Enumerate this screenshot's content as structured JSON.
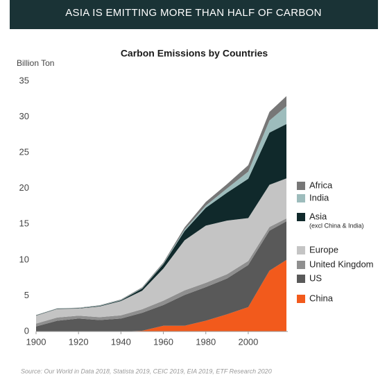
{
  "header": {
    "title": "ASIA IS EMITTING MORE THAN HALF OF CARBON"
  },
  "chart_data": {
    "type": "stacked-area",
    "title": "Carbon Emissions by Countries",
    "y_label": "Billion Ton",
    "x": [
      1900,
      1910,
      1920,
      1930,
      1940,
      1950,
      1960,
      1970,
      1980,
      1990,
      2000,
      2010,
      2018
    ],
    "series": [
      {
        "name": "China",
        "color": "#f25a1c",
        "values": [
          0,
          0,
          0,
          0,
          0,
          0.1,
          0.8,
          0.8,
          1.5,
          2.4,
          3.4,
          8.5,
          10
        ]
      },
      {
        "name": "US",
        "color": "#595959",
        "values": [
          0.7,
          1.5,
          1.8,
          1.6,
          1.8,
          2.5,
          2.9,
          4.3,
          4.7,
          5.0,
          5.9,
          5.6,
          5.4
        ]
      },
      {
        "name": "United Kingdom",
        "color": "#8f8f8f",
        "values": [
          0.4,
          0.45,
          0.4,
          0.4,
          0.45,
          0.5,
          0.6,
          0.65,
          0.6,
          0.6,
          0.55,
          0.5,
          0.4
        ]
      },
      {
        "name": "Europe",
        "color": "#c4c4c4",
        "values": [
          1.1,
          1.2,
          1.0,
          1.5,
          2.0,
          2.6,
          4.5,
          7.0,
          8.0,
          7.5,
          6.0,
          5.9,
          5.6
        ]
      },
      {
        "name": "Asia",
        "name_detail": "(excl China & India)",
        "color": "#10292b",
        "values": [
          0.05,
          0.05,
          0.05,
          0.08,
          0.1,
          0.3,
          0.6,
          1.3,
          2.5,
          3.9,
          5.5,
          7.3,
          7.6
        ]
      },
      {
        "name": "India",
        "color": "#9dbcbc",
        "values": [
          0.03,
          0.03,
          0.04,
          0.05,
          0.06,
          0.07,
          0.1,
          0.2,
          0.3,
          0.6,
          1.0,
          1.7,
          2.5
        ]
      },
      {
        "name": "Africa",
        "color": "#777777",
        "values": [
          0.02,
          0.02,
          0.03,
          0.04,
          0.06,
          0.1,
          0.15,
          0.3,
          0.5,
          0.6,
          0.9,
          1.2,
          1.4
        ]
      }
    ],
    "xlim": [
      1900,
      2018
    ],
    "xticks": [
      1900,
      1920,
      1940,
      1960,
      1980,
      2000
    ],
    "ylim": [
      0,
      35
    ],
    "yticks": [
      0,
      5,
      10,
      15,
      20,
      25,
      30,
      35
    ],
    "grid": false
  },
  "source": "Source: Our World in Data 2018, Statista 2019, CEIC 2019, EIA 2019, ETF Research 2020"
}
